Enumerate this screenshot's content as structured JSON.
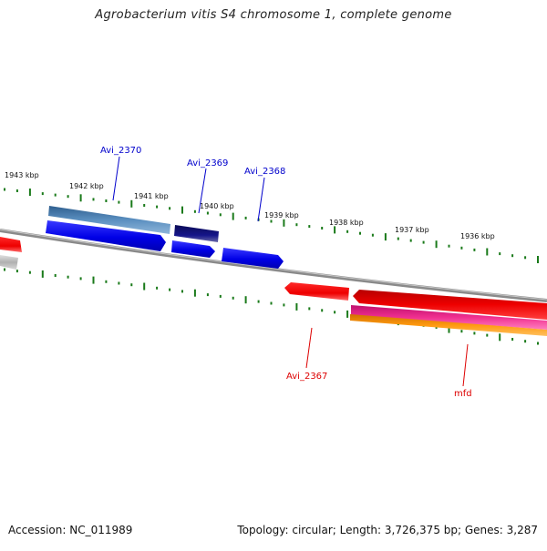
{
  "title": "Agrobacterium vitis S4 chromosome 1, complete genome",
  "footer": {
    "accession": "Accession: NC_011989",
    "topology": "Topology: circular; Length: 3,726,375 bp; Genes: 3,287"
  },
  "scale_labels": [
    "1943 kbp",
    "1942 kbp",
    "1941 kbp",
    "1940 kbp",
    "1939 kbp",
    "1938 kbp",
    "1937 kbp",
    "1936 kbp"
  ],
  "gene_labels": {
    "avi_2370": "Avi_2370",
    "avi_2369": "Avi_2369",
    "avi_2368": "Avi_2368",
    "avi_2367": "Avi_2367",
    "mfd": "mfd"
  },
  "colors": {
    "tick": "#1a7a1a",
    "backbone": "#888888",
    "label_blue": "#0000cc",
    "label_red": "#dd0000",
    "gene_blue": "#0000ee",
    "gene_steelblue": "#4a7fb0",
    "gene_navy": "#10107a",
    "gene_red": "#ee0000",
    "gene_magenta": "#e8208a",
    "gene_orange": "#f08c00",
    "gene_grey": "#b8b8b8"
  }
}
